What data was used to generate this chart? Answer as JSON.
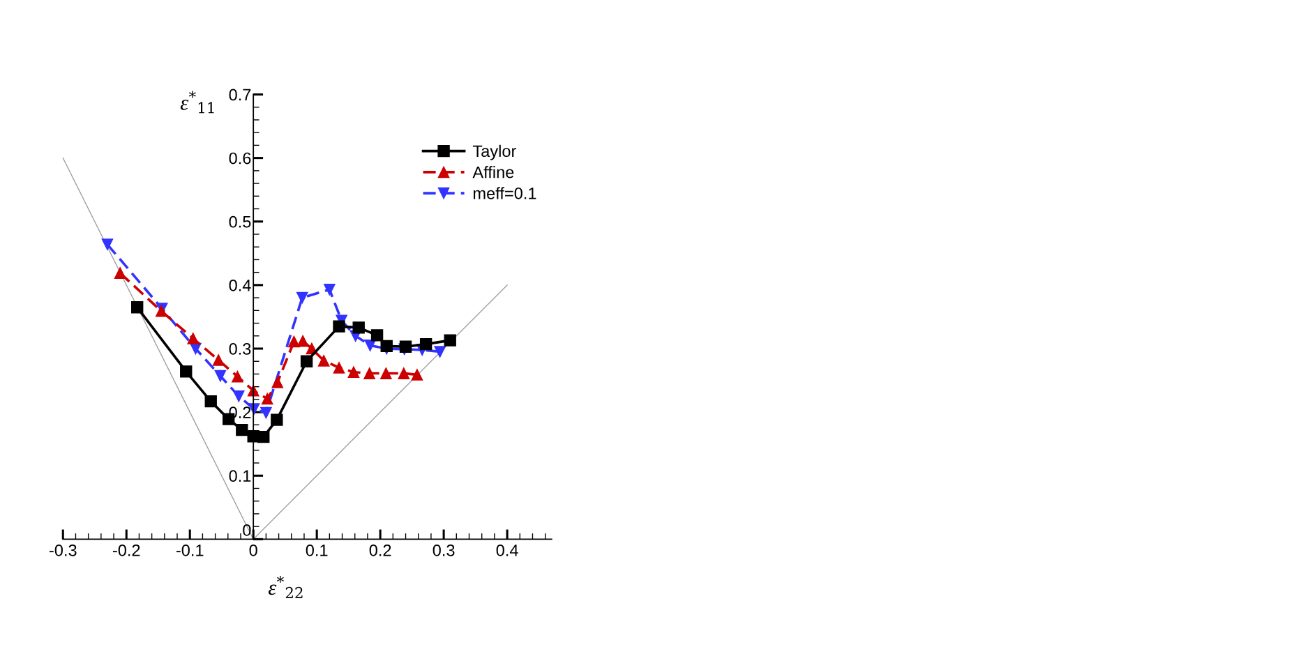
{
  "chart_data": {
    "type": "line",
    "xlabel": "ε$^{*}$$_{22}$",
    "ylabel": "ε$^{*}$$_{11}$",
    "xlim": [
      -0.3,
      0.47
    ],
    "ylim": [
      0,
      0.7
    ],
    "xticks": [
      -0.3,
      {
        "value": -0.28,
        "label": null
      },
      {
        "value": -0.26,
        "label": null
      },
      {
        "value": -0.24,
        "label": null
      },
      {
        "value": -0.22,
        "label": null
      },
      -0.2,
      {
        "value": -0.18,
        "label": null
      },
      {
        "value": -0.16,
        "label": null
      },
      {
        "value": -0.14,
        "label": null
      },
      {
        "value": -0.12,
        "label": null
      },
      -0.1,
      {
        "value": -0.08,
        "label": null
      },
      {
        "value": -0.06,
        "label": null
      },
      {
        "value": -0.04,
        "label": null
      },
      {
        "value": -0.02,
        "label": null
      },
      0,
      {
        "value": 0.02,
        "label": null
      },
      {
        "value": 0.04,
        "label": null
      },
      {
        "value": 0.06,
        "label": null
      },
      {
        "value": 0.08,
        "label": null
      },
      0.1,
      {
        "value": 0.12,
        "label": null
      },
      {
        "value": 0.14,
        "label": null
      },
      {
        "value": 0.16,
        "label": null
      },
      {
        "value": 0.18,
        "label": null
      },
      0.2,
      {
        "value": 0.22,
        "label": null
      },
      {
        "value": 0.24,
        "label": null
      },
      {
        "value": 0.26,
        "label": null
      },
      {
        "value": 0.28,
        "label": null
      },
      0.3,
      {
        "value": 0.32,
        "label": null
      },
      {
        "value": 0.34,
        "label": null
      },
      {
        "value": 0.36,
        "label": null
      },
      {
        "value": 0.38,
        "label": null
      },
      0.4,
      {
        "value": 0.42,
        "label": null
      },
      {
        "value": 0.44,
        "label": null
      },
      {
        "value": 0.46,
        "label": null
      }
    ],
    "yticks": [
      0,
      {
        "value": 0.02,
        "label": null
      },
      {
        "value": 0.04,
        "label": null
      },
      {
        "value": 0.06,
        "label": null
      },
      {
        "value": 0.08,
        "label": null
      },
      0.1,
      {
        "value": 0.12,
        "label": null
      },
      {
        "value": 0.14,
        "label": null
      },
      {
        "value": 0.16,
        "label": null
      },
      {
        "value": 0.18,
        "label": null
      },
      0.2,
      {
        "value": 0.22,
        "label": null
      },
      {
        "value": 0.24,
        "label": null
      },
      {
        "value": 0.26,
        "label": null
      },
      {
        "value": 0.28,
        "label": null
      },
      0.3,
      {
        "value": 0.32,
        "label": null
      },
      {
        "value": 0.34,
        "label": null
      },
      {
        "value": 0.36,
        "label": null
      },
      {
        "value": 0.38,
        "label": null
      },
      0.4,
      {
        "value": 0.42,
        "label": null
      },
      {
        "value": 0.44,
        "label": null
      },
      {
        "value": 0.46,
        "label": null
      },
      {
        "value": 0.48,
        "label": null
      },
      0.5,
      {
        "value": 0.52,
        "label": null
      },
      {
        "value": 0.54,
        "label": null
      },
      {
        "value": 0.56,
        "label": null
      },
      {
        "value": 0.58,
        "label": null
      },
      0.6,
      {
        "value": 0.62,
        "label": null
      },
      {
        "value": 0.64,
        "label": null
      },
      {
        "value": 0.66,
        "label": null
      },
      {
        "value": 0.68,
        "label": null
      },
      0.7
    ],
    "legend": "top right",
    "series": [
      {
        "color": "#a0a0a0",
        "marker": "none",
        "line_style": "solid",
        "x": [
          -0.3,
          0
        ],
        "values": [
          0.6,
          0
        ]
      },
      {
        "color": "#a0a0a0",
        "marker": "none",
        "line_style": "solid",
        "x": [
          0,
          0.4
        ],
        "values": [
          0,
          0.4
        ]
      },
      {
        "name": "Taylor",
        "color": "#000000",
        "marker": "square",
        "line_style": "solid",
        "x": [
          -0.183,
          -0.106,
          -0.067,
          -0.039,
          -0.018,
          0.0,
          0.016,
          0.037,
          0.084,
          0.135,
          0.166,
          0.195,
          0.21,
          0.24,
          0.272,
          0.31
        ],
        "values": [
          0.365,
          0.264,
          0.217,
          0.189,
          0.172,
          0.162,
          0.161,
          0.188,
          0.28,
          0.335,
          0.333,
          0.321,
          0.304,
          0.303,
          0.307,
          0.313
        ]
      },
      {
        "name": "Affine",
        "color": "#cc0000",
        "marker": "triangle",
        "line_style": "dashed",
        "x": [
          -0.21,
          -0.145,
          -0.095,
          -0.055,
          -0.025,
          0.0,
          0.022,
          0.038,
          0.064,
          0.078,
          0.092,
          0.111,
          0.135,
          0.158,
          0.183,
          0.209,
          0.237,
          0.258
        ],
        "values": [
          0.419,
          0.359,
          0.316,
          0.282,
          0.256,
          0.234,
          0.221,
          0.247,
          0.311,
          0.312,
          0.3,
          0.281,
          0.27,
          0.263,
          0.261,
          0.261,
          0.261,
          0.259
        ]
      },
      {
        "name": "meff=0.1",
        "color": "#3333ff",
        "marker": "triangle_down",
        "line_style": "dashed",
        "x": [
          -0.23,
          -0.144,
          -0.091,
          -0.052,
          -0.023,
          0.001,
          0.02,
          0.077,
          0.12,
          0.139,
          0.161,
          0.184,
          0.21,
          0.238,
          0.266,
          0.294
        ],
        "values": [
          0.464,
          0.363,
          0.3,
          0.257,
          0.225,
          0.205,
          0.199,
          0.38,
          0.393,
          0.344,
          0.32,
          0.305,
          0.3,
          0.299,
          0.298,
          0.295
        ]
      }
    ]
  }
}
